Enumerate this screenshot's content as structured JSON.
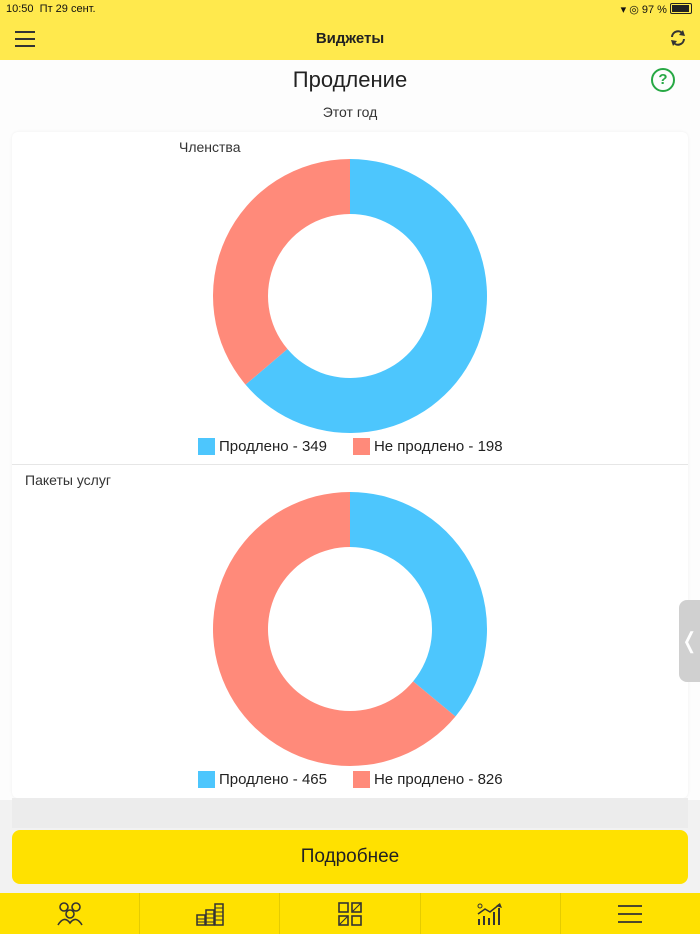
{
  "status": {
    "time": "10:50",
    "date": "Пт 29 сент.",
    "battery": "97 %"
  },
  "nav": {
    "title": "Виджеты",
    "menu_icon": "hamburger-icon",
    "refresh_icon": "refresh-icon"
  },
  "header": {
    "title": "Продление",
    "period": "Этот год",
    "help_label": "?"
  },
  "charts_meta": {
    "renewed_color": "#4dc6fd",
    "not_renewed_color": "#ff8a7a"
  },
  "chart_data": [
    {
      "type": "pie",
      "title": "Членства",
      "categories": [
        "Продлено",
        "Не продлено"
      ],
      "values": [
        349,
        198
      ],
      "legend": [
        "Продлено - 349",
        "Не продлено - 198"
      ],
      "legend_position": "bottom"
    },
    {
      "type": "pie",
      "title": "Пакеты услуг",
      "categories": [
        "Продлено",
        "Не продлено"
      ],
      "values": [
        465,
        826
      ],
      "legend": [
        "Продлено - 465",
        "Не продлено - 826"
      ],
      "legend_position": "bottom"
    }
  ],
  "actions": {
    "more_label": "Подробнее"
  },
  "tabbar": [
    {
      "icon": "clients-icon"
    },
    {
      "icon": "coins-icon"
    },
    {
      "icon": "widgets-icon"
    },
    {
      "icon": "stats-icon"
    },
    {
      "icon": "menu-icon"
    }
  ]
}
